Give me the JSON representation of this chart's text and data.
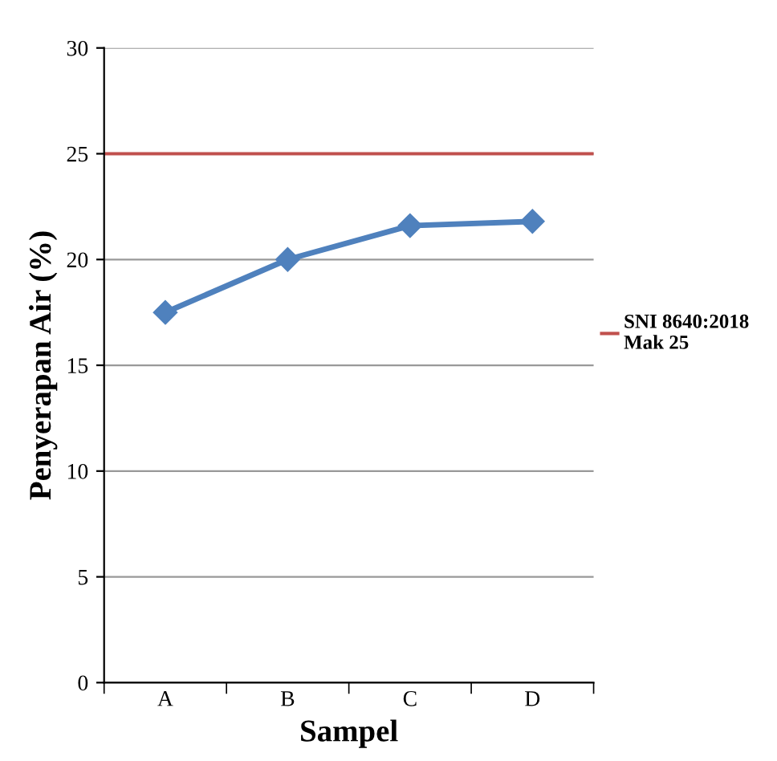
{
  "chart_data": {
    "type": "line",
    "xlabel": "Sampel",
    "ylabel": "Penyerapan Air (%)",
    "categories": [
      "A",
      "B",
      "C",
      "D"
    ],
    "series": [
      {
        "color": "#4f81bd",
        "values": [
          17.5,
          20.0,
          21.6,
          21.8
        ]
      }
    ],
    "marker": "diamond",
    "line_style": "solid",
    "ylim": [
      0,
      30
    ],
    "yticks": [
      0,
      5,
      10,
      15,
      20,
      25,
      30
    ],
    "grid": "y",
    "ref_lines": [
      {
        "axis": "y",
        "value": 25,
        "label": "SNI 8640:2018\nMak 25",
        "color": "#c0504d",
        "line_style": "solid"
      }
    ],
    "legend": "right"
  }
}
